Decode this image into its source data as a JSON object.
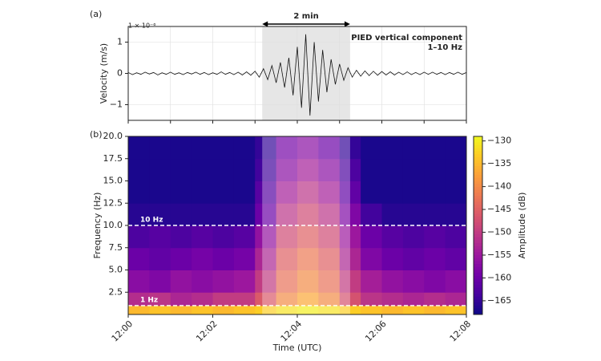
{
  "chart_data": [
    {
      "type": "line",
      "panel_label": "(a)",
      "ylabel": "Velocity (m/s)",
      "y_multiplier": "1 × 10⁻⁶",
      "annotation": [
        "PIED vertical component",
        "1–10 Hz"
      ],
      "span_label": "2 min",
      "highlight": [
        3.17,
        5.25
      ],
      "color": "#111111",
      "grid": true,
      "xlim": [
        0,
        8
      ],
      "xticks": [
        0,
        1,
        2,
        3,
        4,
        5,
        6,
        7,
        8
      ],
      "ylim": [
        -1.5,
        1.5
      ],
      "yticks": [
        {
          "value": -1,
          "label": "−1"
        },
        0,
        1
      ],
      "x": [
        0,
        0.1,
        0.2,
        0.3,
        0.4,
        0.5,
        0.6,
        0.7,
        0.8,
        0.9,
        1,
        1.1,
        1.2,
        1.3,
        1.4,
        1.5,
        1.6,
        1.7,
        1.8,
        1.9,
        2,
        2.1,
        2.2,
        2.3,
        2.4,
        2.5,
        2.6,
        2.7,
        2.8,
        2.9,
        3,
        3.1,
        3.2,
        3.3,
        3.4,
        3.5,
        3.6,
        3.7,
        3.8,
        3.9,
        4,
        4.1,
        4.2,
        4.3,
        4.4,
        4.5,
        4.6,
        4.7,
        4.8,
        4.9,
        5,
        5.1,
        5.2,
        5.3,
        5.4,
        5.5,
        5.6,
        5.7,
        5.8,
        5.9,
        6,
        6.1,
        6.2,
        6.3,
        6.4,
        6.5,
        6.6,
        6.7,
        6.8,
        6.9,
        7,
        7.1,
        7.2,
        7.3,
        7.4,
        7.5,
        7.6,
        7.7,
        7.8,
        7.9,
        8
      ],
      "values": [
        0.03,
        -0.04,
        0.02,
        -0.03,
        0.04,
        -0.02,
        0.03,
        -0.05,
        0.02,
        -0.03,
        0.04,
        -0.03,
        0.02,
        -0.04,
        0.03,
        -0.02,
        0.04,
        -0.03,
        0.03,
        -0.04,
        0.02,
        -0.03,
        0.05,
        -0.03,
        0.03,
        -0.04,
        0.04,
        -0.05,
        0.05,
        -0.06,
        0.07,
        -0.12,
        0.15,
        -0.2,
        0.25,
        -0.3,
        0.35,
        -0.45,
        0.5,
        -0.7,
        0.85,
        -1.1,
        1.25,
        -1.35,
        1.0,
        -0.9,
        0.75,
        -0.6,
        0.45,
        -0.35,
        0.3,
        -0.22,
        0.18,
        -0.12,
        0.1,
        -0.09,
        0.08,
        -0.07,
        0.07,
        -0.06,
        0.06,
        -0.05,
        0.05,
        -0.05,
        0.04,
        -0.04,
        0.05,
        -0.04,
        0.03,
        -0.04,
        0.04,
        -0.03,
        0.04,
        -0.03,
        0.03,
        -0.04,
        0.03,
        -0.03,
        0.04,
        -0.03,
        0.03
      ]
    },
    {
      "type": "heatmap",
      "panel_label": "(b)",
      "ylabel": "Frequency (Hz)",
      "xlabel": "Time (UTC)",
      "highlight": [
        3.17,
        5.25
      ],
      "xlim": [
        0,
        8
      ],
      "xticks": [
        {
          "value": 0,
          "label": "12:00"
        },
        {
          "value": 2,
          "label": "12:02"
        },
        {
          "value": 4,
          "label": "12:04"
        },
        {
          "value": 6,
          "label": "12:06"
        },
        {
          "value": 8,
          "label": "12:08"
        }
      ],
      "ylim": [
        0,
        20
      ],
      "yticks": [
        2.5,
        {
          "value": 5,
          "label": "5.0"
        },
        7.5,
        {
          "value": 10,
          "label": "10.0"
        },
        12.5,
        {
          "value": 15,
          "label": "15.0"
        },
        17.5,
        {
          "value": 20,
          "label": "20.0"
        }
      ],
      "lines": [
        {
          "value": 10,
          "label": "10 Hz"
        },
        {
          "value": 1,
          "label": "1 Hz"
        }
      ],
      "x_edges": [
        0,
        0.5,
        1,
        1.5,
        2,
        2.5,
        3,
        3.5,
        4,
        4.5,
        5,
        5.5,
        6,
        6.5,
        7,
        7.5,
        8
      ],
      "y_edges": [
        0,
        1,
        2.5,
        5,
        7.5,
        10,
        12.5,
        15,
        17.5,
        20
      ],
      "z": [
        [
          -135,
          -134,
          -135,
          -134,
          -135,
          -134,
          -133,
          -131,
          -130,
          -131,
          -133,
          -134,
          -135,
          -134,
          -135,
          -134
        ],
        [
          -152,
          -151,
          -153,
          -152,
          -150,
          -150,
          -146,
          -140,
          -137,
          -140,
          -147,
          -151,
          -152,
          -153,
          -152,
          -153
        ],
        [
          -157,
          -158,
          -156,
          -157,
          -156,
          -155,
          -150,
          -143,
          -140,
          -143,
          -150,
          -154,
          -156,
          -157,
          -158,
          -157
        ],
        [
          -160,
          -161,
          -160,
          -159,
          -160,
          -159,
          -153,
          -145,
          -142,
          -145,
          -153,
          -158,
          -160,
          -161,
          -160,
          -161
        ],
        [
          -163,
          -162,
          -163,
          -162,
          -163,
          -162,
          -156,
          -148,
          -145,
          -148,
          -155,
          -160,
          -162,
          -163,
          -162,
          -163
        ],
        [
          -166,
          -166,
          -166,
          -166,
          -166,
          -166,
          -160,
          -151,
          -148,
          -151,
          -158,
          -164,
          -166,
          -166,
          -166,
          -166
        ],
        [
          -167,
          -167,
          -167,
          -167,
          -167,
          -167,
          -162,
          -154,
          -151,
          -154,
          -161,
          -167,
          -167,
          -167,
          -167,
          -167
        ],
        [
          -167,
          -167,
          -167,
          -167,
          -167,
          -167,
          -164,
          -157,
          -154,
          -157,
          -163,
          -167,
          -167,
          -167,
          -167,
          -167
        ],
        [
          -167,
          -167,
          -167,
          -167,
          -167,
          -167,
          -165,
          -159,
          -157,
          -160,
          -165,
          -167,
          -167,
          -167,
          -167,
          -167
        ]
      ],
      "colorbar": {
        "label": "Amplitude (dB)",
        "cmap": "plasma",
        "lim": [
          -168,
          -129
        ],
        "ticks": [
          {
            "value": -130,
            "label": "−130"
          },
          {
            "value": -135,
            "label": "−135"
          },
          {
            "value": -140,
            "label": "−140"
          },
          {
            "value": -145,
            "label": "−145"
          },
          {
            "value": -150,
            "label": "−150"
          },
          {
            "value": -155,
            "label": "−155"
          },
          {
            "value": -160,
            "label": "−160"
          },
          {
            "value": -165,
            "label": "−165"
          }
        ]
      }
    }
  ]
}
